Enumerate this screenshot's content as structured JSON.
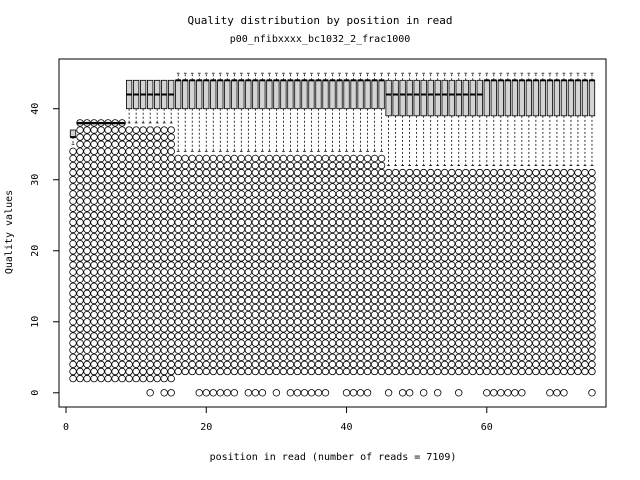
{
  "chart_data": {
    "type": "box",
    "title": "Quality distribution by position in read",
    "subtitle": "p00_nfibxxxx_bc1032_2_frac1000",
    "xlabel": "position in read (number of reads = 7109)",
    "ylabel": "Quality values",
    "xlim": [
      -1,
      77
    ],
    "ylim": [
      -2,
      47
    ],
    "x_ticks": [
      0,
      20,
      40,
      60
    ],
    "y_ticks": [
      0,
      10,
      20,
      30,
      40
    ],
    "grid": false,
    "positions_count": 75,
    "boxes": [
      {
        "x": 1,
        "q1": 36,
        "median": 36,
        "q3": 37,
        "whisker_low": 35,
        "whisker_high": 37
      },
      {
        "x": 2,
        "q1": 38,
        "median": 38,
        "q3": 38,
        "whisker_low": 38,
        "whisker_high": 38
      },
      {
        "x": 5,
        "q1": 38,
        "median": 38,
        "q3": 38,
        "whisker_low": 38,
        "whisker_high": 38
      },
      {
        "x": 9,
        "q1": 40,
        "median": 42,
        "q3": 44,
        "whisker_low": 38,
        "whisker_high": 44
      },
      {
        "x": 12,
        "q1": 40,
        "median": 42,
        "q3": 44,
        "whisker_low": 38,
        "whisker_high": 44
      },
      {
        "x": 15,
        "q1": 40,
        "median": 42,
        "q3": 44,
        "whisker_low": 38,
        "whisker_high": 44
      },
      {
        "x": 16,
        "q1": 40,
        "median": 44,
        "q3": 44,
        "whisker_low": 34,
        "whisker_high": 45
      },
      {
        "x": 30,
        "q1": 40,
        "median": 44,
        "q3": 44,
        "whisker_low": 34,
        "whisker_high": 45
      },
      {
        "x": 45,
        "q1": 40,
        "median": 44,
        "q3": 44,
        "whisker_low": 34,
        "whisker_high": 45
      },
      {
        "x": 46,
        "q1": 39,
        "median": 42,
        "q3": 44,
        "whisker_low": 32,
        "whisker_high": 45
      },
      {
        "x": 60,
        "q1": 39,
        "median": 44,
        "q3": 44,
        "whisker_low": 32,
        "whisker_high": 45
      },
      {
        "x": 75,
        "q1": 39,
        "median": 44,
        "q3": 44,
        "whisker_low": 32,
        "whisker_high": 45
      }
    ],
    "outlier_bands": [
      {
        "x_from": 1,
        "x_to": 1,
        "y_from": 2,
        "y_to": 34
      },
      {
        "x_from": 2,
        "x_to": 8,
        "y_from": 2,
        "y_to": 38
      },
      {
        "x_from": 9,
        "x_to": 15,
        "y_from": 2,
        "y_to": 37
      },
      {
        "x_from": 16,
        "x_to": 45,
        "y_from": 3,
        "y_to": 33
      },
      {
        "x_from": 46,
        "x_to": 75,
        "y_from": 3,
        "y_to": 31
      }
    ],
    "bottom_outliers_y": 0,
    "bottom_outliers_x": [
      12,
      14,
      15,
      19,
      20,
      21,
      22,
      23,
      24,
      26,
      27,
      28,
      30,
      32,
      33,
      34,
      35,
      36,
      37,
      40,
      41,
      42,
      43,
      46,
      48,
      49,
      51,
      53,
      56,
      60,
      61,
      62,
      63,
      64,
      65,
      69,
      70,
      71,
      75
    ]
  },
  "colors": {
    "box_fill": "#d3d3d3",
    "stroke": "#000000",
    "background": "#ffffff"
  }
}
